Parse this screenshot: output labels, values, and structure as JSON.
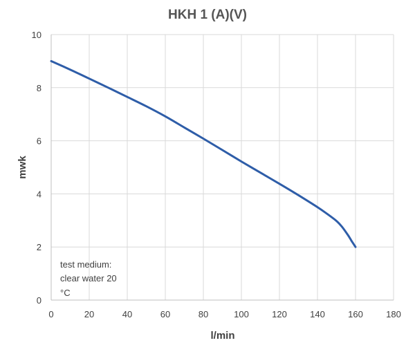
{
  "chart_data": {
    "type": "line",
    "title": "HKH 1 (A)(V)",
    "xlabel": "l/min",
    "ylabel": "mwk",
    "xlim": [
      0,
      180
    ],
    "ylim": [
      0,
      10
    ],
    "x_ticks": [
      "0",
      "20",
      "40",
      "60",
      "80",
      "100",
      "120",
      "140",
      "160",
      "180"
    ],
    "y_ticks": [
      "0",
      "2",
      "4",
      "6",
      "8",
      "10"
    ],
    "grid": true,
    "legend": "none",
    "annotation": [
      "test medium:",
      "clear water 20",
      "°C"
    ],
    "series": [
      {
        "color": "#2e5da8",
        "x": [
          0,
          10,
          20,
          30,
          40,
          50,
          60,
          70,
          80,
          90,
          100,
          110,
          120,
          130,
          140,
          145,
          150,
          153,
          156,
          158,
          160
        ],
        "y": [
          9.0,
          8.68,
          8.34,
          8.0,
          7.65,
          7.3,
          6.92,
          6.5,
          6.08,
          5.65,
          5.22,
          4.8,
          4.38,
          3.95,
          3.5,
          3.25,
          2.98,
          2.75,
          2.45,
          2.22,
          2.0
        ]
      }
    ]
  }
}
